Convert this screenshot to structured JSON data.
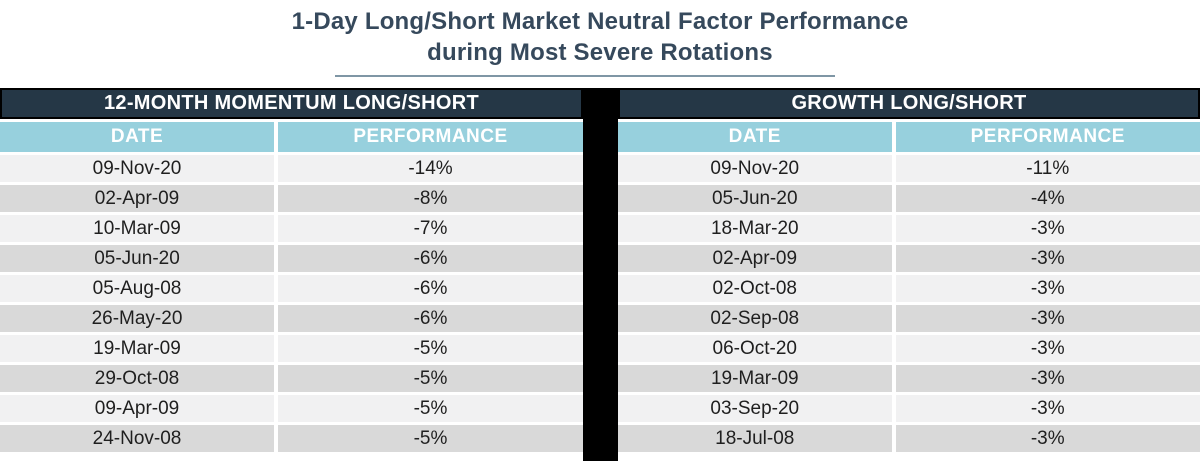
{
  "title": {
    "line1": "1-Day Long/Short Market Neutral Factor Performance",
    "line2": "during Most Severe Rotations"
  },
  "colors": {
    "title_text": "#36495C",
    "table_header_bg": "#253746",
    "table_header_text": "#ffffff",
    "column_header_bg": "#97D0DD",
    "column_header_text": "#ffffff",
    "row_light_bg": "#F1F1F2",
    "row_dark_bg": "#D9D9D9",
    "row_text": "#1f1f1f",
    "divider_bar": "#000000",
    "underline": "#7F96A5"
  },
  "chart_data": [
    {
      "type": "table",
      "title": "12-MONTH MOMENTUM LONG/SHORT",
      "columns": [
        "DATE",
        "PERFORMANCE"
      ],
      "rows": [
        {
          "date": "09-Nov-20",
          "performance": "-14%"
        },
        {
          "date": "02-Apr-09",
          "performance": "-8%"
        },
        {
          "date": "10-Mar-09",
          "performance": "-7%"
        },
        {
          "date": "05-Jun-20",
          "performance": "-6%"
        },
        {
          "date": "05-Aug-08",
          "performance": "-6%"
        },
        {
          "date": "26-May-20",
          "performance": "-6%"
        },
        {
          "date": "19-Mar-09",
          "performance": "-5%"
        },
        {
          "date": "29-Oct-08",
          "performance": "-5%"
        },
        {
          "date": "09-Apr-09",
          "performance": "-5%"
        },
        {
          "date": "24-Nov-08",
          "performance": "-5%"
        }
      ]
    },
    {
      "type": "table",
      "title": "GROWTH LONG/SHORT",
      "columns": [
        "DATE",
        "PERFORMANCE"
      ],
      "rows": [
        {
          "date": "09-Nov-20",
          "performance": "-11%"
        },
        {
          "date": "05-Jun-20",
          "performance": "-4%"
        },
        {
          "date": "18-Mar-20",
          "performance": "-3%"
        },
        {
          "date": "02-Apr-09",
          "performance": "-3%"
        },
        {
          "date": "02-Oct-08",
          "performance": "-3%"
        },
        {
          "date": "02-Sep-08",
          "performance": "-3%"
        },
        {
          "date": "06-Oct-20",
          "performance": "-3%"
        },
        {
          "date": "19-Mar-09",
          "performance": "-3%"
        },
        {
          "date": "03-Sep-20",
          "performance": "-3%"
        },
        {
          "date": "18-Jul-08",
          "performance": "-3%"
        }
      ]
    }
  ]
}
